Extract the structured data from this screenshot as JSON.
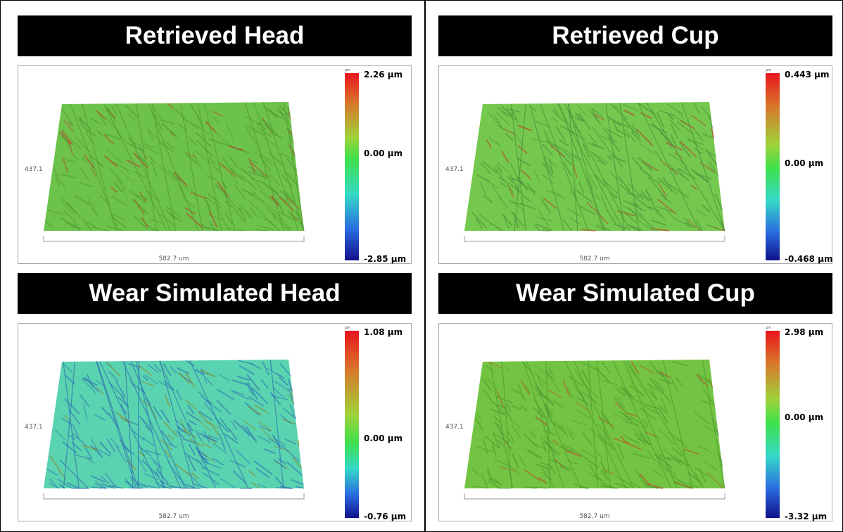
{
  "panels": [
    {
      "title": "Retrieved Head",
      "unit": "µm",
      "scale_max": "2.26 µm",
      "scale_mid": "0.00 µm",
      "scale_min": "-2.85 µm",
      "y_size": "437.1",
      "x_size": "582.7 um"
    },
    {
      "title": "Retrieved Cup",
      "unit": "µm",
      "scale_max": "0.443 µm",
      "scale_mid": "0.00 µm",
      "scale_min": "-0.468 µm",
      "y_size": "437.1",
      "x_size": "582.7 um"
    },
    {
      "title": "Wear Simulated Head",
      "unit": "µm",
      "scale_max": "1.08 µm",
      "scale_mid": "0.00 µm",
      "scale_min": "-0.76 µm",
      "y_size": "437.1",
      "x_size": "582.7 um"
    },
    {
      "title": "Wear Simulated Cup",
      "unit": "µm",
      "scale_max": "2.98 µm",
      "scale_mid": "0.00 µm",
      "scale_min": "-3.32 µm",
      "y_size": "437.1",
      "x_size": "582.7 um"
    }
  ]
}
